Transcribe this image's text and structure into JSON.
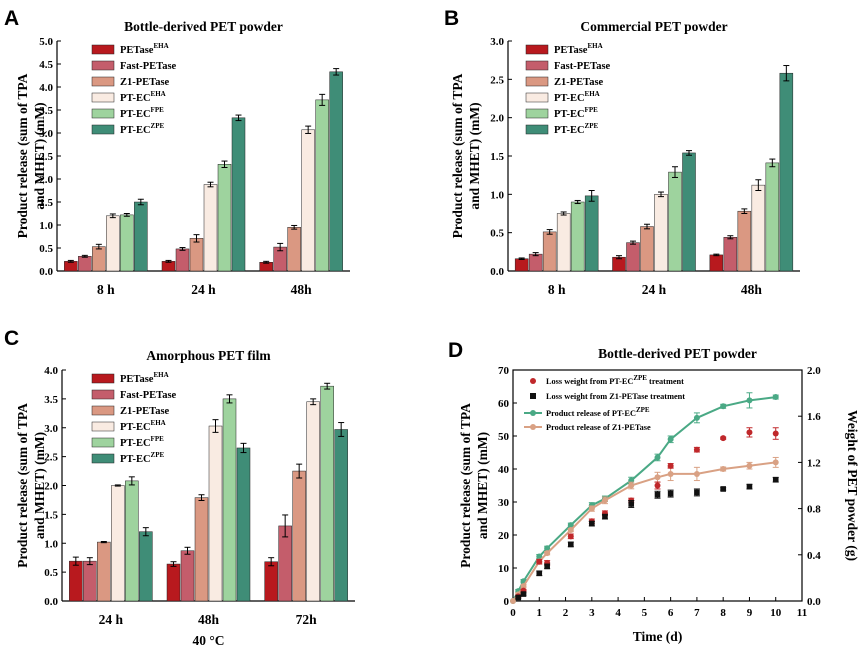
{
  "figure": {
    "panels": [
      "A",
      "B",
      "C",
      "D"
    ]
  },
  "colors": {
    "PETase_EHA": "#b8191e",
    "Fast_PETase": "#c45d6b",
    "Z1_PETase": "#da9882",
    "PT_EC_EHA": "#f9ebe2",
    "PT_EC_FPE": "#9ed39e",
    "PT_EC_ZPE": "#3f8d77",
    "lossZPE": "#c0282b",
    "lossZ1": "#111111",
    "lineZPE": "#4aa985",
    "lineZ1": "#d9a184"
  },
  "legend_bar": [
    {
      "base": "PETase",
      "sup": "EHA"
    },
    {
      "base": "Fast-PETase",
      "sup": ""
    },
    {
      "base": "Z1-PETase",
      "sup": ""
    },
    {
      "base": "PT-EC",
      "sup": "EHA"
    },
    {
      "base": "PT-EC",
      "sup": "FPE"
    },
    {
      "base": "PT-EC",
      "sup": "ZPE"
    }
  ],
  "chart_data": [
    {
      "panel": "A",
      "type": "bar",
      "title": "Bottle-derived PET powder",
      "ylabel_1": "Product release (sum of TPA",
      "ylabel_2": "and MHET) (mM)",
      "xlabel": "",
      "categories": [
        "8 h",
        "24 h",
        "48h"
      ],
      "ylim": [
        0,
        5.0
      ],
      "yticks": [
        "0.0",
        "0.5",
        "1.0",
        "1.5",
        "2.0",
        "2.5",
        "3.0",
        "3.5",
        "4.0",
        "4.5",
        "5.0"
      ],
      "series": [
        {
          "name": "PETaseEHA",
          "values": [
            0.21,
            0.21,
            0.19
          ],
          "errors": [
            0.02,
            0.02,
            0.02
          ]
        },
        {
          "name": "Fast-PETase",
          "values": [
            0.32,
            0.48,
            0.52
          ],
          "errors": [
            0.02,
            0.03,
            0.08
          ]
        },
        {
          "name": "Z1-PETase",
          "values": [
            0.53,
            0.71,
            0.95
          ],
          "errors": [
            0.05,
            0.08,
            0.04
          ]
        },
        {
          "name": "PT-ECEHA",
          "values": [
            1.2,
            1.88,
            3.07
          ],
          "errors": [
            0.04,
            0.05,
            0.08
          ]
        },
        {
          "name": "PT-ECFPE",
          "values": [
            1.22,
            2.32,
            3.72
          ],
          "errors": [
            0.03,
            0.07,
            0.12
          ]
        },
        {
          "name": "PT-ECZPE",
          "values": [
            1.5,
            3.33,
            4.33
          ],
          "errors": [
            0.06,
            0.06,
            0.07
          ]
        }
      ]
    },
    {
      "panel": "B",
      "type": "bar",
      "title": "Commercial PET powder",
      "ylabel_1": "Product release (sum of TPA",
      "ylabel_2": "and MHET) (mM)",
      "xlabel": "",
      "categories": [
        "8 h",
        "24 h",
        "48h"
      ],
      "ylim": [
        0,
        3.0
      ],
      "yticks": [
        "0.0",
        "0.5",
        "1.0",
        "1.5",
        "2.0",
        "2.5",
        "3.0"
      ],
      "series": [
        {
          "name": "PETaseEHA",
          "values": [
            0.16,
            0.18,
            0.21
          ],
          "errors": [
            0.01,
            0.02,
            0.01
          ]
        },
        {
          "name": "Fast-PETase",
          "values": [
            0.22,
            0.37,
            0.44
          ],
          "errors": [
            0.02,
            0.02,
            0.02
          ]
        },
        {
          "name": "Z1-PETase",
          "values": [
            0.51,
            0.58,
            0.78
          ],
          "errors": [
            0.03,
            0.03,
            0.03
          ]
        },
        {
          "name": "PT-ECEHA",
          "values": [
            0.75,
            1.0,
            1.12
          ],
          "errors": [
            0.02,
            0.03,
            0.07
          ]
        },
        {
          "name": "PT-ECFPE",
          "values": [
            0.9,
            1.29,
            1.41
          ],
          "errors": [
            0.02,
            0.07,
            0.05
          ]
        },
        {
          "name": "PT-ECZPE",
          "values": [
            0.98,
            1.54,
            2.58
          ],
          "errors": [
            0.07,
            0.03,
            0.1
          ]
        }
      ]
    },
    {
      "panel": "C",
      "type": "bar",
      "title": "Amorphous PET film",
      "ylabel_1": "Product release (sum of TPA",
      "ylabel_2": "and MHET) (mM)",
      "xlabel": "40 °C",
      "categories": [
        "24 h",
        "48h",
        "72h"
      ],
      "ylim": [
        0,
        4.0
      ],
      "yticks": [
        "0.0",
        "0.5",
        "1.0",
        "1.5",
        "2.0",
        "2.5",
        "3.0",
        "3.5",
        "4.0"
      ],
      "series": [
        {
          "name": "PETaseEHA",
          "values": [
            0.69,
            0.64,
            0.68
          ],
          "errors": [
            0.07,
            0.04,
            0.07
          ]
        },
        {
          "name": "Fast-PETase",
          "values": [
            0.69,
            0.87,
            1.3
          ],
          "errors": [
            0.06,
            0.06,
            0.19
          ]
        },
        {
          "name": "Z1-PETase",
          "values": [
            1.02,
            1.79,
            2.25
          ],
          "errors": [
            0.01,
            0.05,
            0.12
          ]
        },
        {
          "name": "PT-ECEHA",
          "values": [
            2.0,
            3.03,
            3.45
          ],
          "errors": [
            0.01,
            0.11,
            0.05
          ]
        },
        {
          "name": "PT-ECFPE",
          "values": [
            2.08,
            3.5,
            3.72
          ],
          "errors": [
            0.07,
            0.07,
            0.05
          ]
        },
        {
          "name": "PT-ECZPE",
          "values": [
            1.2,
            2.65,
            2.97
          ],
          "errors": [
            0.07,
            0.08,
            0.12
          ]
        }
      ]
    },
    {
      "panel": "D",
      "type": "line",
      "title": "Bottle-derived PET powder",
      "ylabel_1": "Product release (sum of TPA",
      "ylabel_2": "and MHET) (mM)",
      "y2label": "Weight  of PET powder (g)",
      "xlabel": "Time (d)",
      "xlim": [
        0,
        11
      ],
      "ylim": [
        0,
        70
      ],
      "y2lim": [
        0,
        2.0
      ],
      "xticks": [
        "0",
        "1",
        "2",
        "3",
        "4",
        "5",
        "6",
        "7",
        "8",
        "9",
        "10",
        "11"
      ],
      "yticks": [
        "0",
        "10",
        "20",
        "30",
        "40",
        "50",
        "60",
        "70"
      ],
      "y2ticks": [
        "0.0",
        "0.4",
        "0.8",
        "1.2",
        "1.6",
        "2.0"
      ],
      "legend": [
        {
          "label": "Loss weight from PT-EC",
          "sup": "ZPE",
          "tail": " treatment"
        },
        {
          "label": "Loss weight from Z1-PETase treatment",
          "sup": "",
          "tail": ""
        },
        {
          "label": "Product release of PT-EC",
          "sup": "ZPE",
          "tail": ""
        },
        {
          "label": "Product release of Z1-PETase",
          "sup": "",
          "tail": ""
        }
      ],
      "series": [
        {
          "name": "Product release of PT-ECZPE",
          "axis": "left",
          "x": [
            0,
            0.2,
            0.4,
            1.0,
            1.3,
            2.2,
            3.0,
            3.5,
            4.5,
            5.5,
            6.0,
            7.0,
            8.0,
            9.0,
            10.0
          ],
          "y": [
            0,
            3.0,
            6.0,
            13.5,
            16.0,
            23.0,
            29.0,
            31.0,
            36.5,
            43.5,
            49.0,
            55.5,
            59.0,
            60.8,
            61.8
          ],
          "errors": [
            0,
            0.5,
            0.5,
            0.6,
            0.6,
            0.6,
            0.8,
            0.8,
            1.0,
            1.0,
            1.0,
            1.5,
            0.6,
            2.3,
            0.6
          ]
        },
        {
          "name": "Product release of Z1-PETase",
          "axis": "left",
          "x": [
            0,
            0.2,
            0.4,
            1.0,
            1.3,
            2.2,
            3.0,
            3.5,
            4.5,
            5.5,
            6.0,
            7.0,
            8.0,
            9.0,
            10.0
          ],
          "y": [
            0,
            2.0,
            4.5,
            12.0,
            14.5,
            21.5,
            28.0,
            30.5,
            35.0,
            37.5,
            38.5,
            38.5,
            40.0,
            41.0,
            42.0
          ],
          "errors": [
            0,
            0.5,
            0.5,
            0.5,
            0.5,
            0.5,
            0.8,
            1.0,
            1.0,
            1.5,
            2.0,
            2.0,
            0.6,
            1.0,
            1.5
          ]
        },
        {
          "name": "Loss weight from PT-ECZPE treatment",
          "axis": "right",
          "x": [
            0.2,
            0.4,
            1.0,
            1.3,
            2.2,
            3.0,
            3.5,
            4.5,
            5.5,
            6.0,
            7.0,
            8.0,
            9.0,
            10.0
          ],
          "y": [
            0.04,
            0.09,
            0.34,
            0.33,
            0.56,
            0.69,
            0.76,
            0.87,
            1.0,
            1.17,
            1.31,
            1.41,
            1.46,
            1.45
          ],
          "errors": [
            0.01,
            0.01,
            0.02,
            0.02,
            0.02,
            0.02,
            0.02,
            0.02,
            0.03,
            0.02,
            0.02,
            0.01,
            0.04,
            0.05
          ]
        },
        {
          "name": "Loss weight from Z1-PETase treatment",
          "axis": "right",
          "x": [
            0.2,
            0.4,
            1.0,
            1.3,
            2.2,
            3.0,
            3.5,
            4.5,
            5.5,
            6.0,
            7.0,
            8.0,
            9.0,
            10.0
          ],
          "y": [
            0.03,
            0.06,
            0.24,
            0.3,
            0.49,
            0.67,
            0.73,
            0.84,
            0.92,
            0.93,
            0.94,
            0.97,
            0.99,
            1.05
          ],
          "errors": [
            0.01,
            0.01,
            0.02,
            0.02,
            0.02,
            0.02,
            0.02,
            0.03,
            0.03,
            0.03,
            0.03,
            0.01,
            0.02,
            0.02
          ]
        }
      ]
    }
  ]
}
